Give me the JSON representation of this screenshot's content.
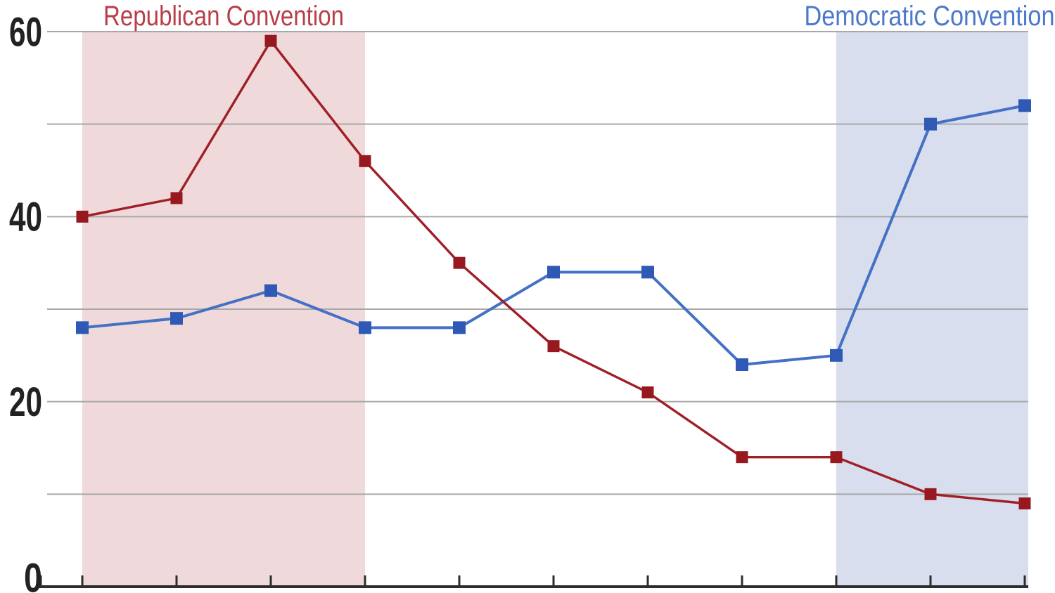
{
  "chart_data": {
    "type": "line",
    "title": "",
    "grid": "horizontal",
    "legend": "none",
    "x_axis": {
      "tick_count": 11,
      "tick_labels": []
    },
    "y_axis": {
      "range": [
        0,
        60
      ],
      "gridline_values": [
        10,
        20,
        30,
        40,
        50,
        60
      ],
      "ticks": [
        {
          "label": "60",
          "value": 60
        },
        {
          "label": "40",
          "value": 40
        },
        {
          "label": "20",
          "value": 20
        },
        {
          "label": "0",
          "value": 0
        }
      ]
    },
    "series": [
      {
        "name": "Democratic",
        "color": "#4470c6",
        "marker_color": "#2e5ab5",
        "marker": "square",
        "values": [
          28,
          29,
          32,
          28,
          28,
          34,
          34,
          24,
          25,
          50,
          52
        ]
      },
      {
        "name": "Republican",
        "color": "#a01e25",
        "marker_color": "#97191f",
        "marker": "square",
        "values": [
          40,
          42,
          59,
          46,
          35,
          26,
          21,
          14,
          14,
          10,
          9
        ]
      }
    ],
    "annotations": [
      {
        "label": "Republican Convention",
        "text_color": "#b73f48",
        "band_color": "#f0d9da",
        "band_start_index": 0,
        "band_end_index": 3
      },
      {
        "label": "Democratic Convention",
        "text_color": "#4c79cb",
        "band_color": "#d8deed",
        "band_start_index": 8,
        "band_end_index": 10
      }
    ]
  },
  "styles": {
    "background": "#ffffff",
    "gridline_color": "#a8a8a8",
    "axis_color": "#2d2d2d",
    "tick_label_color": "#222222"
  }
}
